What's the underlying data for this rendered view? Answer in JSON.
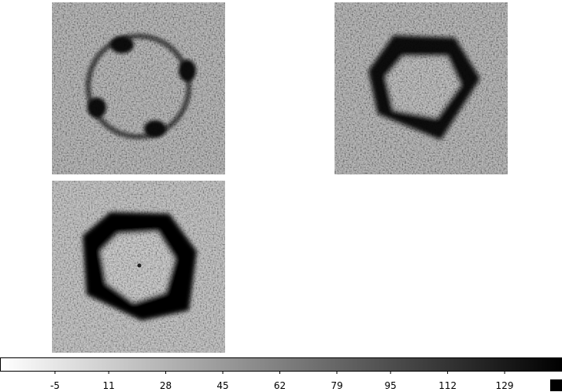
{
  "colorbar": {
    "lim": [
      -21.4,
      146.1
    ],
    "ticks": [
      -5,
      11,
      28,
      45,
      62,
      79,
      95,
      112,
      129
    ]
  }
}
